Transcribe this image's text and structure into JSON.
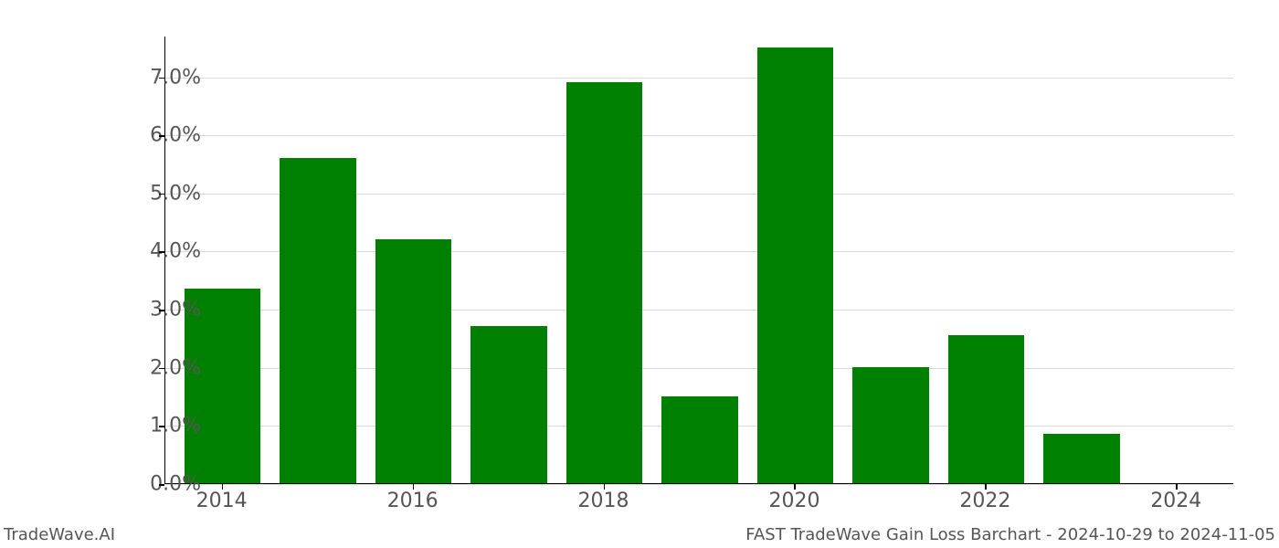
{
  "chart": {
    "type": "bar",
    "years": [
      2014,
      2015,
      2016,
      2017,
      2018,
      2019,
      2020,
      2021,
      2022,
      2023,
      2024
    ],
    "values_pct": [
      3.35,
      5.6,
      4.2,
      2.7,
      6.9,
      1.5,
      7.5,
      2.0,
      2.55,
      0.85,
      0.0
    ],
    "bar_color": "#008000",
    "background_color": "#ffffff",
    "grid_color": "#d9d9d9",
    "axis_color": "#000000",
    "tick_label_color": "#555555",
    "ylim": [
      0.0,
      7.7
    ],
    "y_ticks": [
      0.0,
      1.0,
      2.0,
      3.0,
      4.0,
      5.0,
      6.0,
      7.0
    ],
    "y_tick_labels": [
      "0.0%",
      "1.0%",
      "2.0%",
      "3.0%",
      "4.0%",
      "5.0%",
      "6.0%",
      "7.0%"
    ],
    "x_ticks": [
      2014,
      2016,
      2018,
      2020,
      2022,
      2024
    ],
    "x_tick_labels": [
      "2014",
      "2016",
      "2018",
      "2020",
      "2022",
      "2024"
    ],
    "x_domain": [
      2013.4,
      2024.6
    ],
    "bar_width_years": 0.8,
    "tick_fontsize": 22,
    "attribution_fontsize": 18
  },
  "attribution": {
    "left": "TradeWave.AI",
    "right": "FAST TradeWave Gain Loss Barchart - 2024-10-29 to 2024-11-05"
  }
}
